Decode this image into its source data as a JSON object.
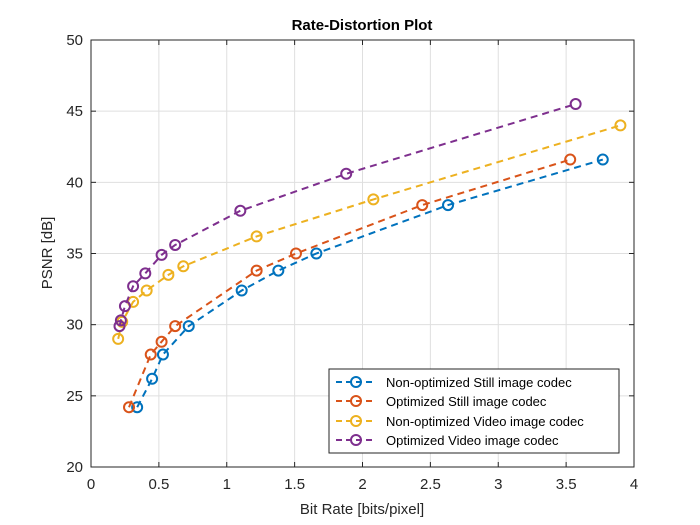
{
  "chart_data": {
    "type": "line",
    "title": "Rate-Distortion Plot",
    "xlabel": "Bit Rate [bits/pixel]",
    "ylabel": "PSNR [dB]",
    "xlim": [
      0,
      4
    ],
    "ylim": [
      20,
      50
    ],
    "xticks": [
      "0",
      "0.5",
      "1",
      "1.5",
      "2",
      "2.5",
      "3",
      "3.5",
      "4"
    ],
    "yticks": [
      "20",
      "25",
      "30",
      "35",
      "40",
      "45",
      "50"
    ],
    "grid": true,
    "legend_position": "bottom-right",
    "series": [
      {
        "name": "Non-optimized Still image codec",
        "color": "#0072BD",
        "x": [
          0.34,
          0.45,
          0.53,
          0.72,
          1.11,
          1.38,
          1.66,
          2.63,
          3.77
        ],
        "y": [
          24.2,
          26.2,
          27.9,
          29.9,
          32.4,
          33.8,
          35.0,
          38.4,
          41.6
        ]
      },
      {
        "name": "Optimized Still image codec",
        "color": "#D95319",
        "x": [
          0.28,
          0.44,
          0.52,
          0.62,
          1.22,
          1.51,
          2.44,
          3.53
        ],
        "y": [
          24.2,
          27.9,
          28.8,
          29.9,
          33.8,
          35.0,
          38.4,
          41.6
        ]
      },
      {
        "name": "Non-optimized Video image codec",
        "color": "#EDB120",
        "x": [
          0.2,
          0.23,
          0.31,
          0.41,
          0.57,
          0.68,
          1.22,
          2.08,
          3.9
        ],
        "y": [
          29.0,
          30.2,
          31.6,
          32.4,
          33.5,
          34.1,
          36.2,
          38.8,
          44.0
        ]
      },
      {
        "name": "Optimized Video image codec",
        "color": "#7E2F8E",
        "x": [
          0.21,
          0.22,
          0.25,
          0.31,
          0.4,
          0.52,
          0.62,
          1.1,
          1.88,
          3.57
        ],
        "y": [
          29.9,
          30.3,
          31.3,
          32.7,
          33.6,
          34.9,
          35.6,
          38.0,
          40.6,
          45.5
        ]
      }
    ]
  }
}
